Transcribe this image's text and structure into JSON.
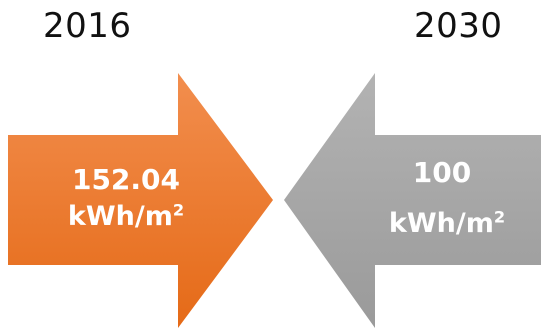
{
  "left": {
    "year": "2016",
    "value": "152.04",
    "unit": "kWh/m",
    "unit_sup": "2",
    "color": "#E8782A"
  },
  "right": {
    "year": "2030",
    "value": "100",
    "unit": "kWh/m",
    "unit_sup": "2",
    "color": "#A6A6A6"
  }
}
